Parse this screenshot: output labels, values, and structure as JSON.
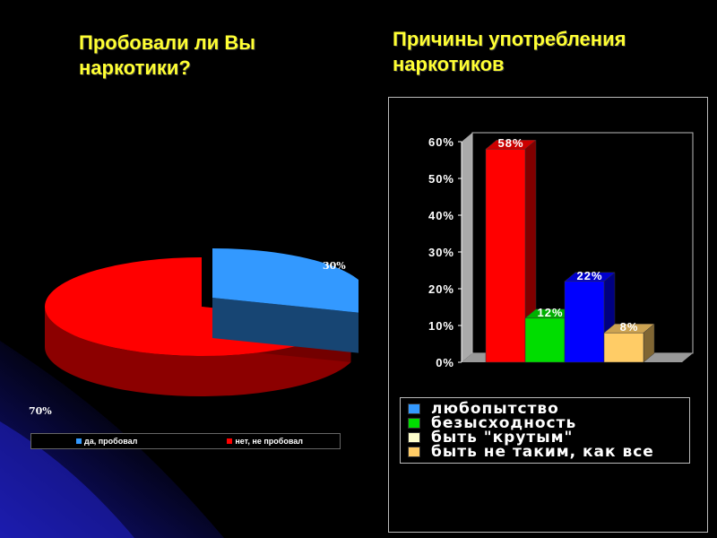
{
  "slide": {
    "title_left": "Пробовали ли Вы наркотики?",
    "title_right": "Причины употребления наркотиков"
  },
  "colors": {
    "background": "#000000",
    "title": "#ffff33",
    "yes": "#3399ff",
    "no": "#ff0000"
  },
  "chart_data": [
    {
      "type": "pie",
      "title": "Пробовали ли Вы наркотики?",
      "slices": [
        {
          "label": "да, пробовал",
          "value": 30,
          "value_label": "30%",
          "color": "#3399ff"
        },
        {
          "label": "нет, не пробовал",
          "value": 70,
          "value_label": "70%",
          "color": "#ff0000"
        }
      ],
      "legend_position": "bottom"
    },
    {
      "type": "bar",
      "title": "Причины употребления наркотиков",
      "categories": [
        "любопытство",
        "безысходность",
        "быть \"крутым\"",
        "быть не таким, как все"
      ],
      "values": [
        58,
        12,
        22,
        8
      ],
      "value_labels": [
        "58%",
        "12%",
        "22%",
        "8%"
      ],
      "bar_colors": [
        "#ff0000",
        "#00dd00",
        "#0000ff",
        "#ffcc66"
      ],
      "legend_colors": [
        "#3399ff",
        "#00dd00",
        "#ffffcc",
        "#ffcc66"
      ],
      "y_ticks": [
        "0%",
        "10%",
        "20%",
        "30%",
        "40%",
        "50%",
        "60%"
      ],
      "ylim": [
        0,
        60
      ],
      "legend_position": "bottom"
    }
  ]
}
